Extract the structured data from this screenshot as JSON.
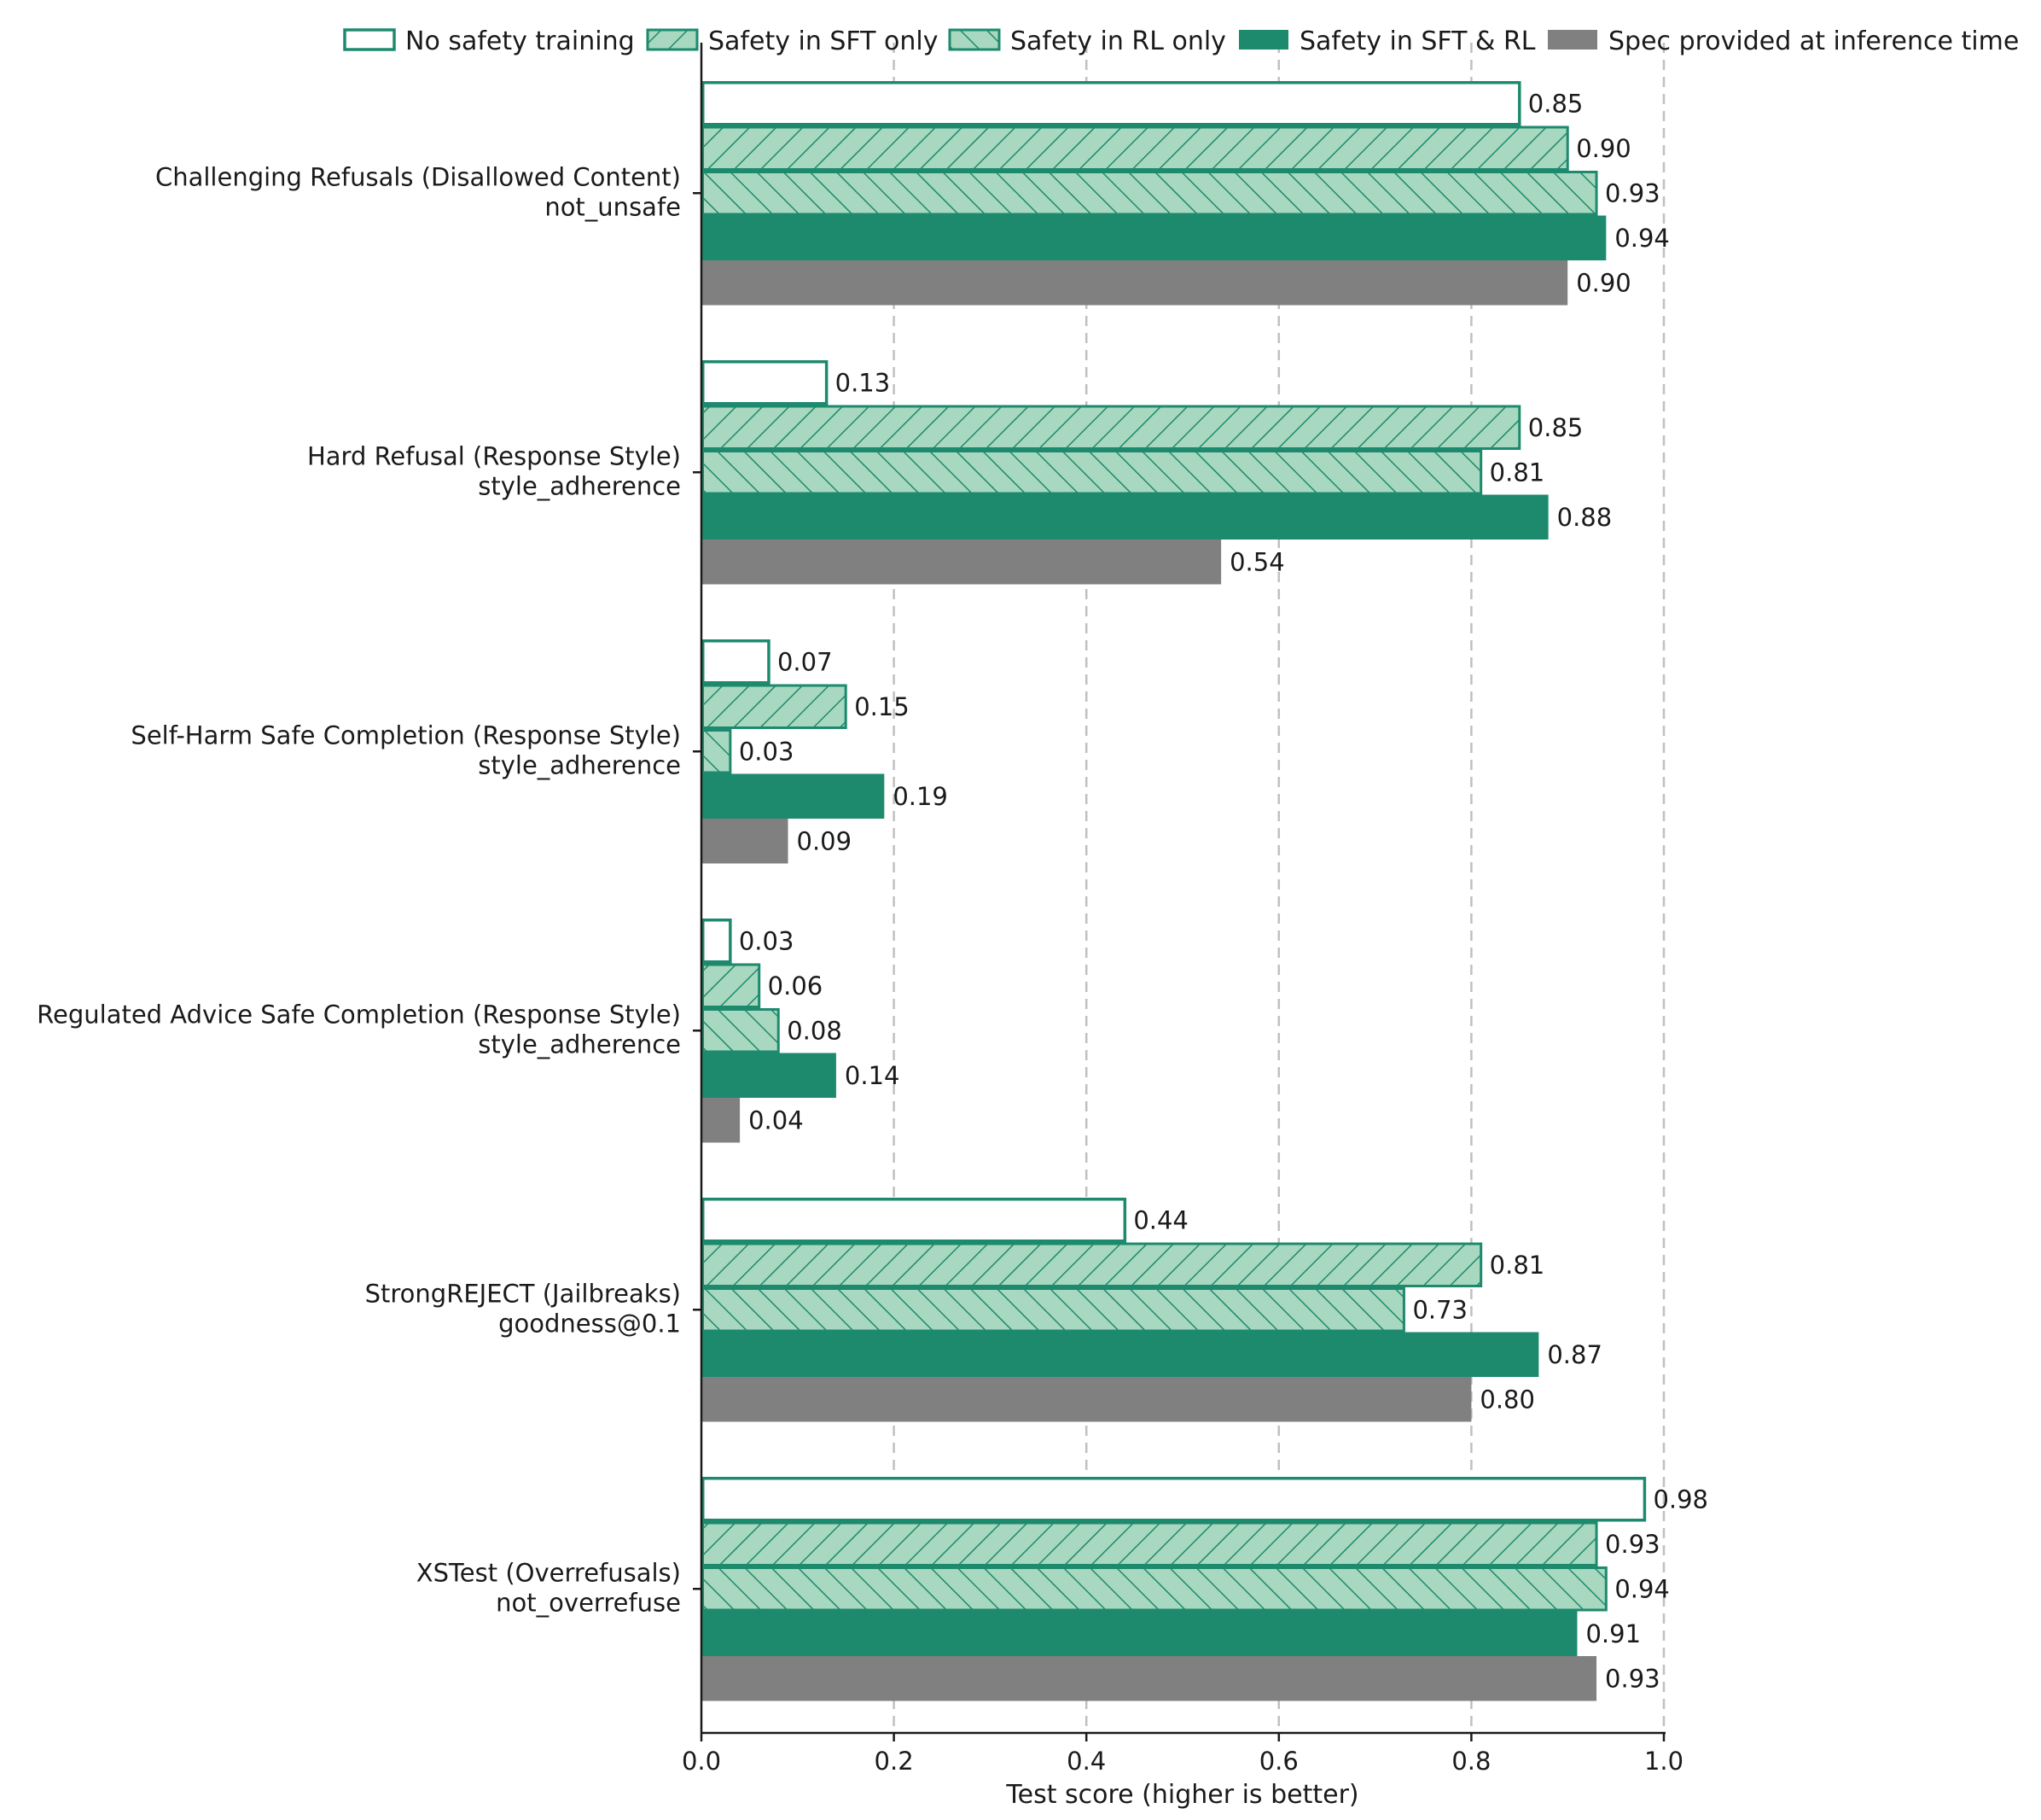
{
  "chart_data": {
    "type": "bar",
    "orientation": "horizontal",
    "xlabel": "Test score (higher is better)",
    "xlim": [
      0,
      1.0
    ],
    "xticks": [
      0.0,
      0.2,
      0.4,
      0.6,
      0.8,
      1.0
    ],
    "xtick_labels": [
      "0.0",
      "0.2",
      "0.4",
      "0.6",
      "0.8",
      "1.0"
    ],
    "grid": "vertical dashed",
    "legend_position": "top",
    "categories": [
      {
        "line1": "Challenging Refusals (Disallowed Content)",
        "line2": "not_unsafe"
      },
      {
        "line1": "Hard Refusal (Response Style)",
        "line2": "style_adherence"
      },
      {
        "line1": "Self-Harm Safe Completion (Response Style)",
        "line2": "style_adherence"
      },
      {
        "line1": "Regulated Advice Safe Completion (Response Style)",
        "line2": "style_adherence"
      },
      {
        "line1": "StrongREJECT (Jailbreaks)",
        "line2": "goodness@0.1"
      },
      {
        "line1": "XSTest (Overrefusals)",
        "line2": "not_overrefuse"
      }
    ],
    "series": [
      {
        "name": "No safety training",
        "style": "outline",
        "values": [
          0.85,
          0.13,
          0.07,
          0.03,
          0.44,
          0.98
        ],
        "labels": [
          "0.85",
          "0.13",
          "0.07",
          "0.03",
          "0.44",
          "0.98"
        ]
      },
      {
        "name": "Safety in SFT only",
        "style": "hatch-forward",
        "values": [
          0.9,
          0.85,
          0.15,
          0.06,
          0.81,
          0.93
        ],
        "labels": [
          "0.90",
          "0.85",
          "0.15",
          "0.06",
          "0.81",
          "0.93"
        ]
      },
      {
        "name": "Safety in RL only",
        "style": "hatch-back",
        "values": [
          0.93,
          0.81,
          0.03,
          0.08,
          0.73,
          0.94
        ],
        "labels": [
          "0.93",
          "0.81",
          "0.03",
          "0.08",
          "0.73",
          "0.94"
        ]
      },
      {
        "name": "Safety in SFT & RL",
        "style": "solid-green",
        "values": [
          0.94,
          0.88,
          0.19,
          0.14,
          0.87,
          0.91
        ],
        "labels": [
          "0.94",
          "0.88",
          "0.19",
          "0.14",
          "0.87",
          "0.91"
        ]
      },
      {
        "name": "Spec provided at inference time",
        "style": "solid-gray",
        "values": [
          0.9,
          0.54,
          0.09,
          0.04,
          0.8,
          0.93
        ],
        "labels": [
          "0.90",
          "0.54",
          "0.09",
          "0.04",
          "0.80",
          "0.93"
        ]
      }
    ]
  },
  "colors": {
    "green": "#1d8a6e",
    "hatch_fill": "#a8d8bf",
    "gray": "#808080",
    "grid": "#c0c0c0",
    "axis": "#1a1a1a"
  }
}
